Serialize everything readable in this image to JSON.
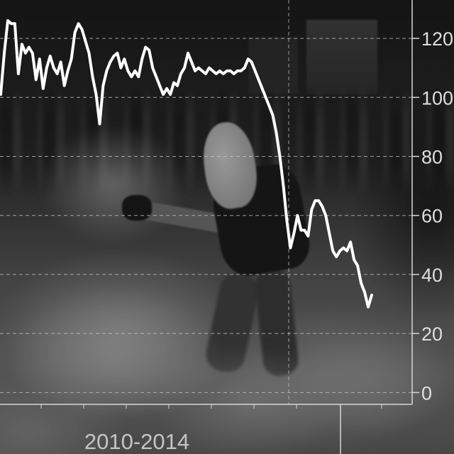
{
  "chart_data": {
    "type": "line",
    "x_tick_labels": [
      "2010-2014"
    ],
    "y_ticks": [
      0,
      20,
      40,
      60,
      80,
      100,
      120
    ],
    "y_tick_labels": [
      "0",
      "20",
      "40",
      "60",
      "80",
      "100",
      "120"
    ],
    "ylim": [
      -4,
      133
    ],
    "y_axis_position": "right",
    "grid": true,
    "series": [
      {
        "values": [
          101,
          115,
          126,
          125,
          125,
          108,
          118,
          115,
          117,
          115,
          106,
          113,
          103,
          110,
          114,
          110,
          108,
          112,
          104,
          109,
          113,
          122,
          125,
          123,
          119,
          115,
          107,
          101,
          91,
          104,
          109,
          112,
          114,
          115,
          110,
          113,
          109,
          107,
          109,
          107,
          113,
          117,
          116,
          110,
          107,
          104,
          101,
          103,
          101,
          105,
          104,
          108,
          110,
          115,
          112,
          109,
          110,
          109,
          108,
          110,
          109,
          108,
          109,
          108,
          109,
          109,
          108,
          109,
          109,
          110,
          113,
          112,
          109,
          106,
          103,
          100,
          97,
          94,
          88,
          80,
          70,
          58,
          49,
          54,
          60,
          55,
          55,
          53,
          62,
          65,
          65,
          63,
          60,
          54,
          48,
          46,
          48,
          49,
          48,
          51,
          45,
          43,
          37,
          34,
          29,
          33
        ]
      }
    ]
  },
  "colors": {
    "line": "#ffffff",
    "gridline": "#c8c8c8",
    "axis": "#d6d6d6",
    "tick_label": "#dedede",
    "x_label": "#c4c4c4"
  }
}
